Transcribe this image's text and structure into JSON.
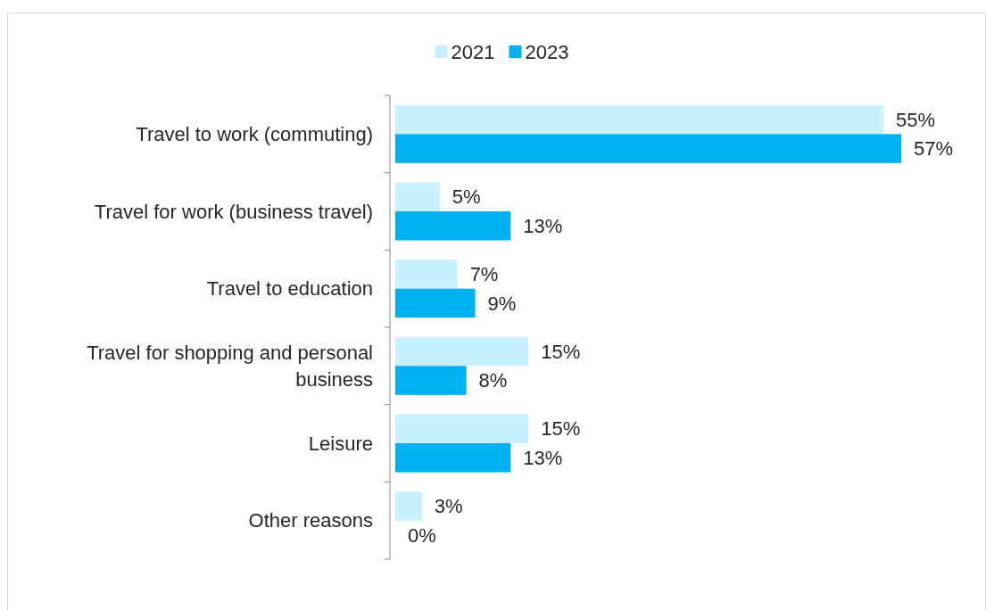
{
  "chart_data": {
    "type": "bar",
    "orientation": "horizontal",
    "legend": "top",
    "categories": [
      "Travel to work (commuting)",
      "Travel for work (business travel)",
      "Travel to education",
      "Travel for shopping and personal business",
      "Leisure",
      "Other reasons"
    ],
    "series": [
      {
        "name": "2021",
        "color": "#c9f1fd",
        "values": [
          55,
          5,
          7,
          15,
          15,
          3
        ],
        "value_labels": [
          "55%",
          "5%",
          "7%",
          "15%",
          "15%",
          "3%"
        ]
      },
      {
        "name": "2023",
        "color": "#00b0f0",
        "values": [
          57,
          13,
          9,
          8,
          13,
          0
        ],
        "value_labels": [
          "57%",
          "13%",
          "9%",
          "8%",
          "13%",
          "0%"
        ]
      }
    ]
  }
}
